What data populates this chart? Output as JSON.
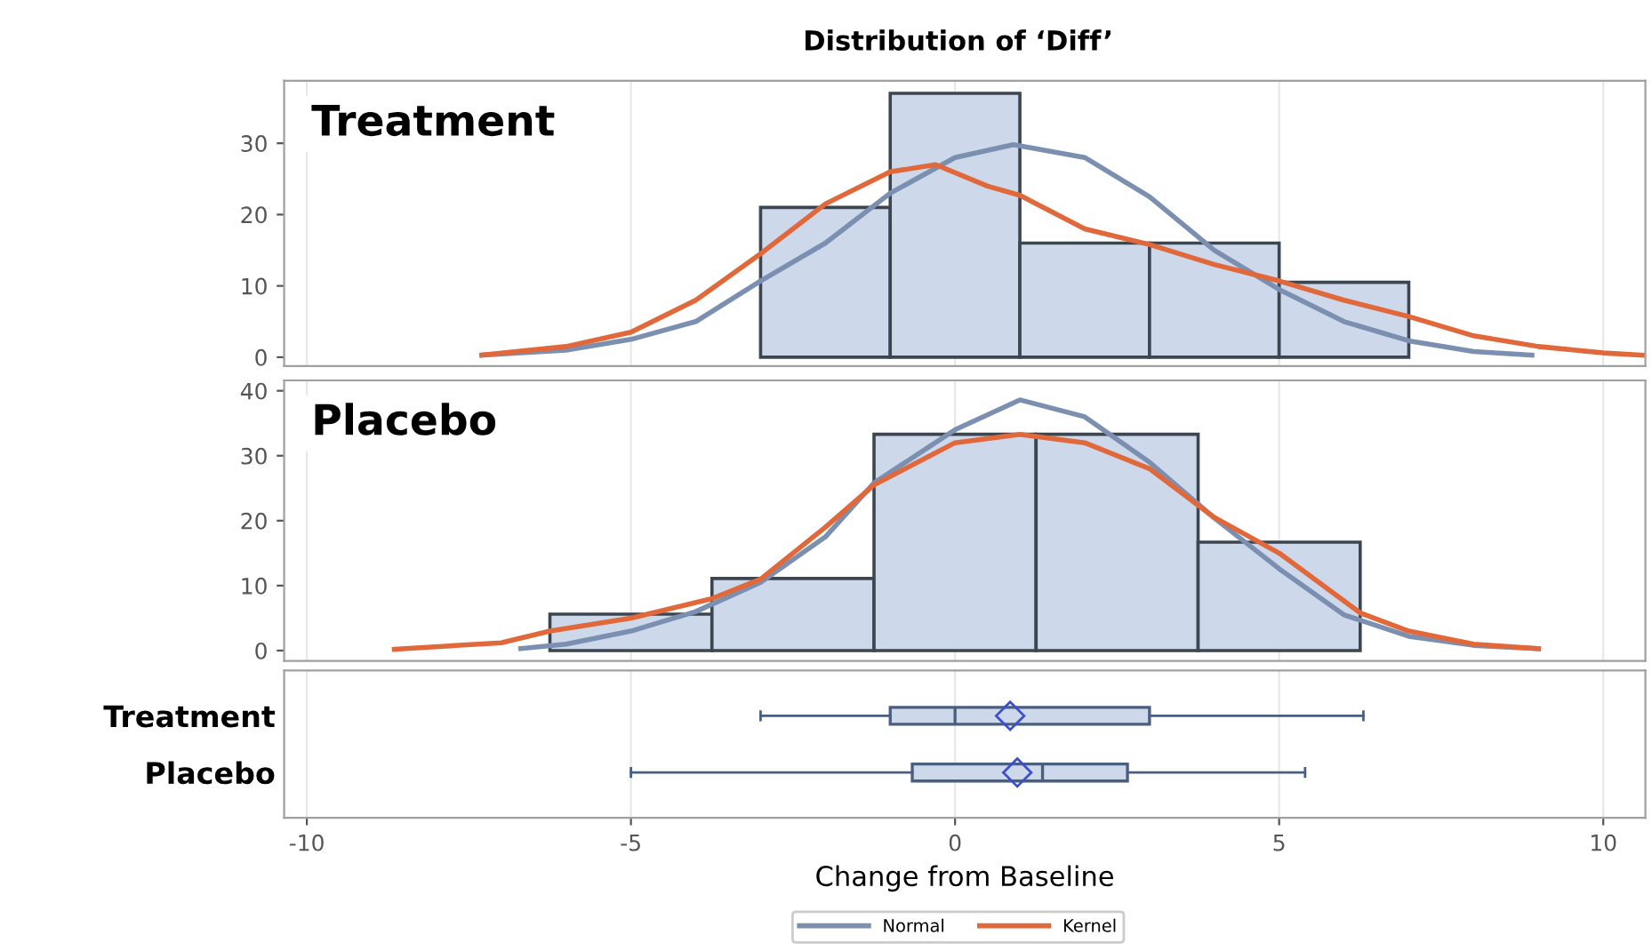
{
  "chart_data": [
    {
      "type": "histogram",
      "title": "Distribution of ‘Diff’",
      "annotations": [
        "Treatment"
      ],
      "bins": [
        -3,
        -1,
        1,
        3,
        5,
        7
      ],
      "values": [
        21,
        37,
        16,
        16,
        10.5
      ],
      "color": "#cdd8ea",
      "series": [
        {
          "type": "line",
          "name": "Normal",
          "color": "#7b8fb0",
          "x": [
            -7.3,
            -6,
            -5,
            -4,
            -3,
            -2,
            -1,
            0,
            0.9,
            2,
            3,
            4,
            5,
            6,
            7,
            8,
            8.9
          ],
          "values": [
            0.3,
            1,
            2.5,
            5,
            10.7,
            16,
            23,
            28,
            29.8,
            28,
            22.5,
            15,
            9.5,
            5,
            2.3,
            0.8,
            0.3
          ]
        },
        {
          "type": "line",
          "name": "Kernel",
          "color": "#e0683a",
          "x": [
            -7.3,
            -6,
            -5,
            -4,
            -3,
            -2,
            -1,
            -0.3,
            0.5,
            1,
            2,
            3,
            4,
            5,
            6,
            7,
            8,
            9,
            10,
            10.6
          ],
          "values": [
            0.3,
            1.5,
            3.5,
            8,
            14.5,
            21.5,
            26,
            27,
            24,
            22.7,
            18,
            15.8,
            13,
            10.7,
            8,
            5.7,
            3,
            1.5,
            0.6,
            0.3
          ]
        }
      ],
      "xlim": [
        -10.35,
        10.65
      ],
      "xticks": [
        -10,
        -5,
        0,
        5,
        10
      ],
      "ylim": [
        -1.25,
        38.75
      ],
      "yticks": [
        0,
        10,
        20,
        30
      ],
      "tick_labels": "y",
      "grid": "x",
      "legend": "bottom"
    },
    {
      "type": "histogram",
      "annotations": [
        "Placebo"
      ],
      "bins": [
        -6.25,
        -3.75,
        -1.25,
        1.25,
        3.75,
        6.25
      ],
      "values": [
        5.6,
        11.1,
        33.3,
        33.3,
        16.7
      ],
      "color": "#cdd8ea",
      "series": [
        {
          "type": "line",
          "color": "#7b8fb0",
          "x": [
            -6.7,
            -6,
            -5,
            -4,
            -3,
            -2,
            -1.25,
            0,
            1,
            2,
            3,
            4,
            5,
            6,
            7,
            8,
            9
          ],
          "values": [
            0.3,
            1,
            3,
            6,
            10.5,
            17.5,
            25.8,
            34,
            38.6,
            36,
            29,
            20.4,
            12.6,
            5.5,
            2.2,
            0.8,
            0.3
          ]
        },
        {
          "type": "line",
          "color": "#e0683a",
          "x": [
            -8.65,
            -7,
            -6.25,
            -5,
            -3.75,
            -3,
            -2,
            -1.25,
            0,
            1,
            2,
            3,
            4,
            5,
            6.25,
            7,
            8,
            9
          ],
          "values": [
            0.2,
            1.2,
            3,
            5,
            8,
            11,
            19,
            25.5,
            32,
            33.3,
            32,
            28,
            20.5,
            15,
            5.8,
            3,
            1,
            0.3
          ]
        }
      ],
      "xlim": [
        -10.35,
        10.65
      ],
      "xticks": [
        -10,
        -5,
        0,
        5,
        10
      ],
      "ylim": [
        -1.6,
        41.6
      ],
      "yticks": [
        0,
        10,
        20,
        30,
        40
      ],
      "tick_labels": "y",
      "grid": "x"
    },
    {
      "type": "box",
      "orientation": "horizontal",
      "xlabel": "Change from Baseline",
      "categories": [
        "Treatment",
        "Placebo"
      ],
      "color": "#cdd8ea",
      "boxes": [
        {
          "low": -3,
          "q1": -1,
          "median": 0,
          "q3": 3,
          "high": 6.3,
          "mean": 0.85
        },
        {
          "low": -5,
          "q1": -0.66,
          "median": 1.35,
          "q3": 2.66,
          "high": 5.4,
          "mean": 0.96
        }
      ],
      "xlim": [
        -10.35,
        10.65
      ],
      "xticks": [
        -10,
        -5,
        0,
        5,
        10
      ],
      "grid": "x"
    }
  ]
}
